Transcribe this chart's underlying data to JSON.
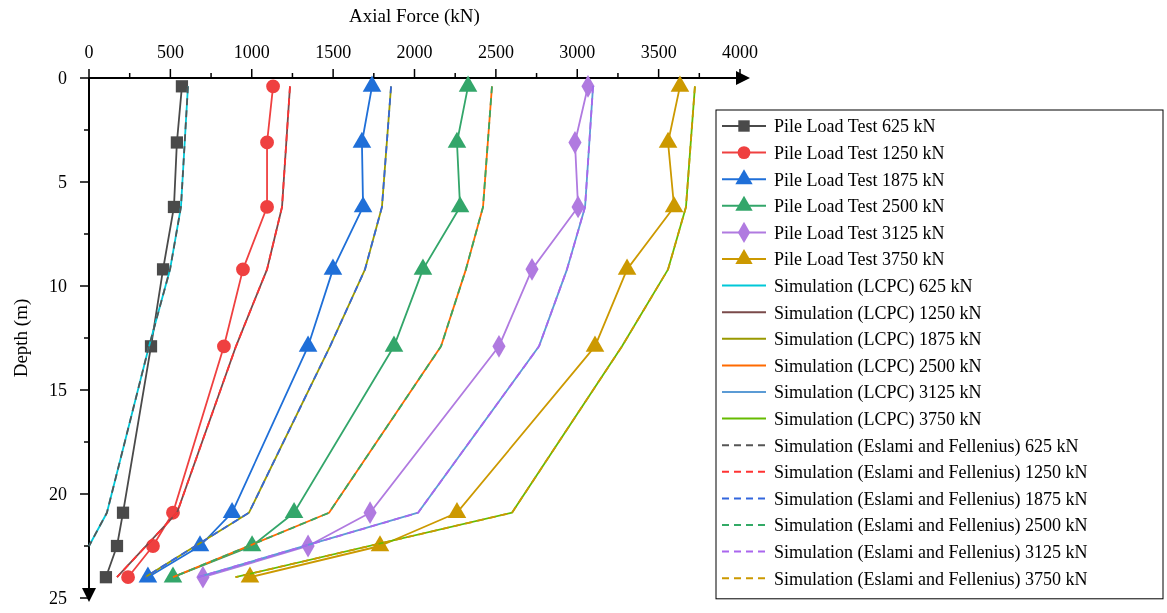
{
  "chart_data": {
    "type": "line",
    "xlabel": "Axial Force (kN)",
    "ylabel": "Depth (m)",
    "xlim": [
      0,
      4000
    ],
    "ylim": [
      25,
      0
    ],
    "xticks": [
      0,
      {
        "value": 250,
        "label": null
      },
      500,
      {
        "value": 750,
        "label": null
      },
      1000,
      {
        "value": 1250,
        "label": null
      },
      1500,
      {
        "value": 1750,
        "label": null
      },
      2000,
      {
        "value": 2250,
        "label": null
      },
      2500,
      {
        "value": 2750,
        "label": null
      },
      3000,
      {
        "value": 3250,
        "label": null
      },
      3500,
      {
        "value": 3750,
        "label": null
      },
      4000
    ],
    "yticks": [
      0,
      {
        "value": 2.5,
        "label": null
      },
      5,
      {
        "value": 7.5,
        "label": null
      },
      10,
      {
        "value": 12.5,
        "label": null
      },
      15,
      {
        "value": 17.5,
        "label": null
      },
      20,
      {
        "value": 22.5,
        "label": null
      },
      25
    ],
    "legend": "right",
    "grid": false,
    "line_style": "solid",
    "series": [
      {
        "name": "Pile Load Test 625 kN",
        "color": "#4a4a4a",
        "marker": "square",
        "x": [
          571,
          540,
          522,
          455,
          381,
          209,
          172,
          104
        ],
        "values": [
          0.4,
          3.1,
          6.2,
          9.2,
          12.9,
          20.9,
          22.5,
          24.0
        ]
      },
      {
        "name": "Pile Load Test 1250 kN",
        "color": "#ef4040",
        "marker": "circle",
        "x": [
          1131,
          1094,
          1094,
          946,
          829,
          516,
          393,
          240
        ],
        "values": [
          0.4,
          3.1,
          6.2,
          9.2,
          12.9,
          20.9,
          22.5,
          24.0
        ]
      },
      {
        "name": "Pile Load Test 1875 kN",
        "color": "#1f6fd8",
        "marker": "triangle",
        "x": [
          1739,
          1677,
          1684,
          1499,
          1346,
          879,
          682,
          362
        ],
        "values": [
          0.4,
          3.1,
          6.2,
          9.2,
          12.9,
          20.9,
          22.5,
          24.0
        ]
      },
      {
        "name": "Pile Load Test 2500 kN",
        "color": "#33a66a",
        "marker": "triangle",
        "x": [
          2329,
          2261,
          2280,
          2052,
          1874,
          1260,
          1002,
          516
        ],
        "values": [
          0.4,
          3.1,
          6.2,
          9.2,
          12.9,
          20.9,
          22.5,
          24.0
        ]
      },
      {
        "name": "Pile Load Test 3125 kN",
        "color": "#b07ae0",
        "marker": "diamond",
        "x": [
          3066,
          2986,
          3005,
          2722,
          2519,
          1727,
          1346,
          700
        ],
        "values": [
          0.4,
          3.1,
          6.2,
          9.2,
          12.9,
          20.9,
          22.5,
          24.0
        ]
      },
      {
        "name": "Pile Load Test 3750 kN",
        "color": "#cc9900",
        "marker": "triangle",
        "x": [
          3631,
          3558,
          3595,
          3306,
          3109,
          2261,
          1788,
          989
        ],
        "values": [
          0.4,
          3.1,
          6.2,
          9.2,
          12.9,
          20.9,
          22.5,
          24.0
        ]
      },
      {
        "name": "Simulation (LCPC) 625 kN",
        "color": "#00c8d8",
        "marker": "none",
        "x": [
          608,
          565,
          498,
          362,
          110,
          0
        ],
        "values": [
          0.4,
          6.2,
          9.2,
          13.1,
          20.9,
          22.5
        ]
      },
      {
        "name": "Simulation (LCPC) 1250 kN",
        "color": "#7a4a4a",
        "marker": "none",
        "x": [
          1235,
          1186,
          1094,
          903,
          541,
          172
        ],
        "values": [
          0.4,
          6.2,
          9.2,
          12.9,
          20.9,
          24.0
        ]
      },
      {
        "name": "Simulation (LCPC) 1875 kN",
        "color": "#999900",
        "marker": "none",
        "x": [
          1856,
          1800,
          1696,
          1481,
          983,
          344
        ],
        "values": [
          0.4,
          6.2,
          9.2,
          12.9,
          20.9,
          24.0
        ]
      },
      {
        "name": "Simulation (LCPC) 2500 kN",
        "color": "#ff6a00",
        "marker": "none",
        "x": [
          2476,
          2421,
          2316,
          2163,
          1475,
          516
        ],
        "values": [
          0.4,
          6.2,
          9.2,
          12.9,
          20.9,
          24.0
        ]
      },
      {
        "name": "Simulation (LCPC) 3125 kN",
        "color": "#5b9bd5",
        "marker": "none",
        "x": [
          3097,
          3048,
          2937,
          2765,
          2022,
          670
        ],
        "values": [
          0.4,
          6.2,
          9.2,
          12.9,
          20.9,
          24.0
        ]
      },
      {
        "name": "Simulation (LCPC) 3750 kN",
        "color": "#66bb00",
        "marker": "none",
        "x": [
          3723,
          3668,
          3558,
          3275,
          2599,
          900
        ],
        "values": [
          0.4,
          6.2,
          9.2,
          12.9,
          20.9,
          24.0
        ]
      },
      {
        "name": "Simulation (Eslami and Fellenius) 625 kN",
        "color": "#555555",
        "marker": "none",
        "line_style": "dashed",
        "x": [
          608,
          565,
          498,
          362,
          110,
          0
        ],
        "values": [
          0.4,
          6.2,
          9.2,
          13.1,
          20.9,
          22.5
        ]
      },
      {
        "name": "Simulation (Eslami and Fellenius) 1250 kN",
        "color": "#ff3333",
        "marker": "none",
        "line_style": "dashed",
        "x": [
          1235,
          1186,
          1094,
          903,
          541,
          172
        ],
        "values": [
          0.4,
          6.2,
          9.2,
          12.9,
          20.9,
          24.0
        ]
      },
      {
        "name": "Simulation (Eslami and Fellenius) 1875 kN",
        "color": "#3366dd",
        "marker": "none",
        "line_style": "dashed",
        "x": [
          1856,
          1800,
          1696,
          1481,
          983,
          344
        ],
        "values": [
          0.4,
          6.2,
          9.2,
          12.9,
          20.9,
          24.0
        ]
      },
      {
        "name": "Simulation (Eslami and Fellenius) 2500 kN",
        "color": "#33aa66",
        "marker": "none",
        "line_style": "dashed",
        "x": [
          2476,
          2421,
          2316,
          2163,
          1475,
          516
        ],
        "values": [
          0.4,
          6.2,
          9.2,
          12.9,
          20.9,
          24.0
        ]
      },
      {
        "name": "Simulation (Eslami and Fellenius) 3125 kN",
        "color": "#aa66ee",
        "marker": "none",
        "line_style": "dashed",
        "x": [
          3097,
          3048,
          2937,
          2765,
          2022,
          670
        ],
        "values": [
          0.4,
          6.2,
          9.2,
          12.9,
          20.9,
          24.0
        ]
      },
      {
        "name": "Simulation (Eslami and Fellenius) 3750 kN",
        "color": "#cc9900",
        "marker": "none",
        "line_style": "dashed",
        "x": [
          3723,
          3668,
          3558,
          3275,
          2599,
          900
        ],
        "values": [
          0.4,
          6.2,
          9.2,
          12.9,
          20.9,
          24.0
        ]
      }
    ]
  }
}
